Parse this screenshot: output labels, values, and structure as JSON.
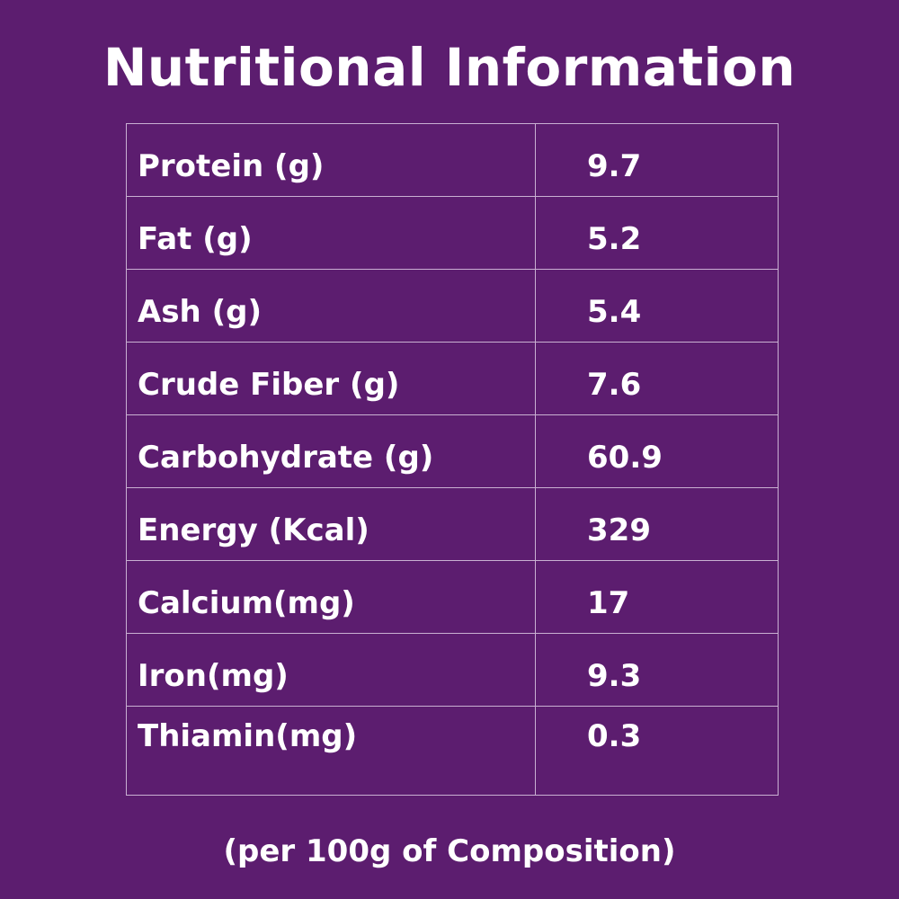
{
  "title": "Nutritional Information",
  "rows": [
    {
      "label": "Protein (g)",
      "value": "9.7"
    },
    {
      "label": "Fat (g)",
      "value": "5.2"
    },
    {
      "label": "Ash (g)",
      "value": "5.4"
    },
    {
      "label": "Crude Fiber (g)",
      "value": "7.6"
    },
    {
      "label": "Carbohydrate (g)",
      "value": "60.9"
    },
    {
      "label": "Energy (Kcal)",
      "value": "329"
    },
    {
      "label": "Calcium(mg)",
      "value": "17"
    },
    {
      "label": "Iron(mg)",
      "value": "9.3"
    },
    {
      "label": "Thiamin(mg)",
      "value": "0.3"
    }
  ],
  "footnote": "(per 100g of Composition)",
  "colors": {
    "background": "#5c1d6f",
    "text": "#ffffff",
    "table_border": "#c9b0d2"
  }
}
